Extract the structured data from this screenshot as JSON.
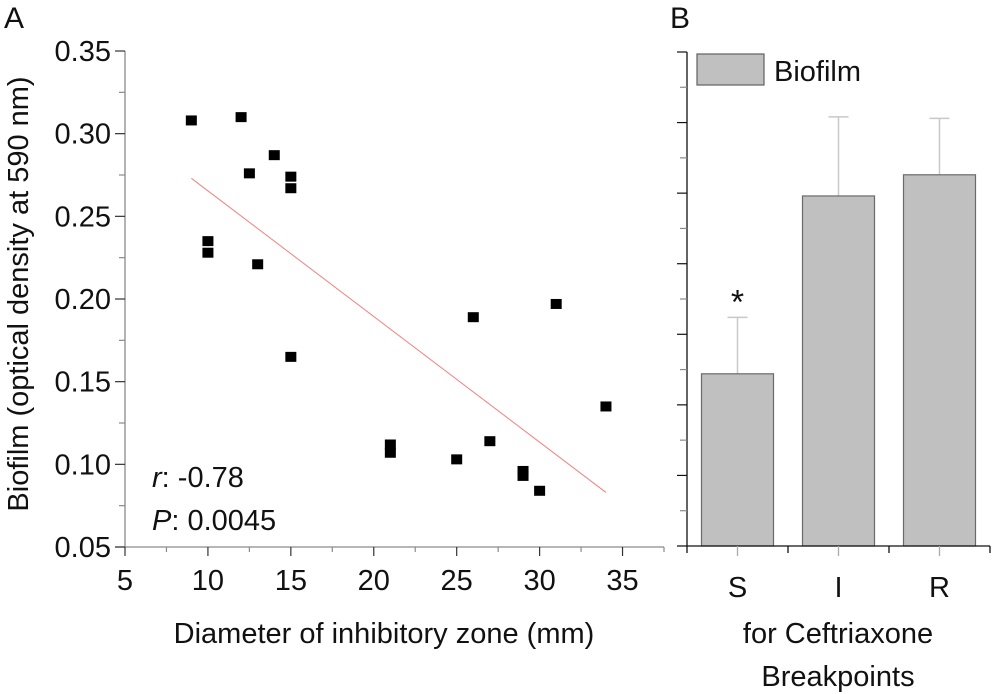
{
  "chart_data": [
    {
      "panel": "A",
      "type": "scatter",
      "title": "",
      "xlabel": "Diameter of inhibitory zone (mm)",
      "ylabel": "Biofilm (optical density at 590 nm)",
      "xlim": [
        5,
        37.5
      ],
      "ylim": [
        0.05,
        0.35
      ],
      "xticks": [
        5,
        10,
        15,
        20,
        25,
        30,
        35
      ],
      "xtick_labels": [
        "5",
        "10",
        "15",
        "20",
        "25",
        "30",
        "35"
      ],
      "xminor_step": 2.5,
      "yticks": [
        0.05,
        0.1,
        0.15,
        0.2,
        0.25,
        0.3,
        0.35
      ],
      "ytick_labels": [
        "0.05",
        "0.10",
        "0.15",
        "0.20",
        "0.25",
        "0.30",
        "0.35"
      ],
      "yminor_step": 0.025,
      "grid": false,
      "points": [
        {
          "x": 9,
          "y": 0.308
        },
        {
          "x": 12,
          "y": 0.31
        },
        {
          "x": 14,
          "y": 0.287
        },
        {
          "x": 12.5,
          "y": 0.276
        },
        {
          "x": 15,
          "y": 0.274
        },
        {
          "x": 15,
          "y": 0.267
        },
        {
          "x": 10,
          "y": 0.235
        },
        {
          "x": 10,
          "y": 0.228
        },
        {
          "x": 13,
          "y": 0.221
        },
        {
          "x": 15,
          "y": 0.165
        },
        {
          "x": 26,
          "y": 0.189
        },
        {
          "x": 31,
          "y": 0.197
        },
        {
          "x": 34,
          "y": 0.135
        },
        {
          "x": 21,
          "y": 0.112
        },
        {
          "x": 21,
          "y": 0.107
        },
        {
          "x": 27,
          "y": 0.114
        },
        {
          "x": 25,
          "y": 0.103
        },
        {
          "x": 29,
          "y": 0.096
        },
        {
          "x": 29,
          "y": 0.093
        },
        {
          "x": 30,
          "y": 0.084
        }
      ],
      "regression_line": {
        "x": [
          9,
          34
        ],
        "y": [
          0.273,
          0.083
        ],
        "color": "#f08080"
      },
      "annotations": {
        "r_label": "r",
        "r_value": ": -0.78",
        "p_label": "P",
        "p_value": ": 0.0045"
      },
      "marker_color": "#000000"
    },
    {
      "panel": "B",
      "type": "bar",
      "title": "",
      "xlabel_lines": [
        "for Ceftriaxone",
        "Breakpoints"
      ],
      "ylabel": "",
      "categories": [
        "S",
        "I",
        "R"
      ],
      "series": [
        {
          "name": "Biofilm",
          "values": [
            0.122,
            0.248,
            0.263
          ],
          "errors_upper": [
            0.162,
            0.304,
            0.303
          ],
          "color": "#c0c0c0"
        }
      ],
      "ylim": [
        0,
        0.35
      ],
      "ytick_step": 0.025,
      "ytick_labels_shown": false,
      "legend": {
        "entries": [
          "Biofilm"
        ],
        "placement": "top-left"
      },
      "significance": [
        {
          "category": "S",
          "symbol": "*"
        }
      ],
      "grid": false
    }
  ],
  "panel_labels": [
    "A",
    "B"
  ]
}
